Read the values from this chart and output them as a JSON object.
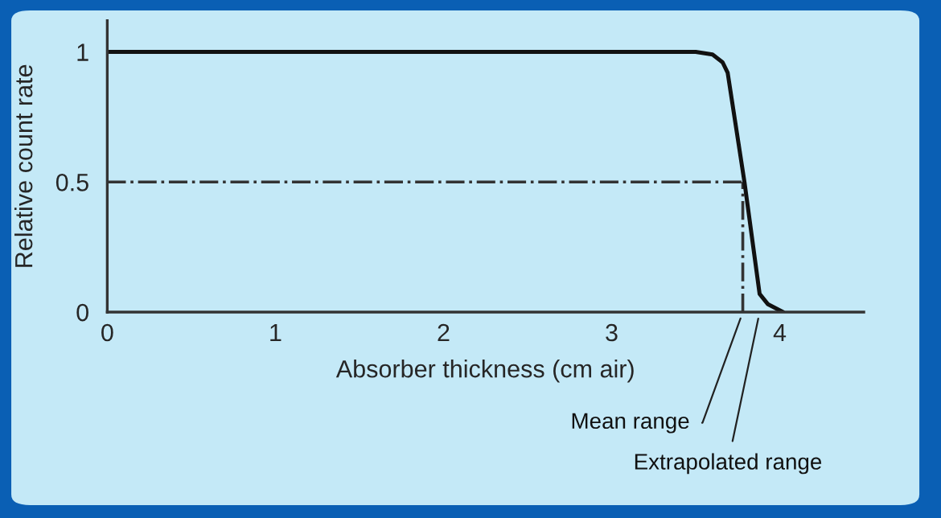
{
  "chart_data": {
    "type": "line",
    "xlabel": "Absorber thickness (cm air)",
    "ylabel": "Relative count rate",
    "x": [
      0,
      3.5,
      3.6,
      3.66,
      3.69,
      3.79,
      3.88,
      3.93,
      4.02
    ],
    "series": [
      {
        "color": "#111111",
        "values": [
          1,
          1,
          0.99,
          0.96,
          0.92,
          0.5,
          0.07,
          0.03,
          0
        ]
      }
    ],
    "xlim": [
      0,
      4.5
    ],
    "xticks": [
      0,
      1,
      2,
      3,
      4
    ],
    "ylim": [
      0,
      1.12
    ],
    "yticks": [
      0,
      0.5,
      1
    ],
    "ref_lines": [
      {
        "axis": "y",
        "value": 0.5,
        "color": "#333333",
        "line_style": "dashdot"
      },
      {
        "axis": "x",
        "value": 3.78,
        "label": "Mean range",
        "color": "#333333",
        "line_style": "dashdot"
      }
    ],
    "annotations": [
      "Extrapolated range"
    ],
    "grid": false,
    "legend": false,
    "marker": "none",
    "line_style": "solid"
  }
}
